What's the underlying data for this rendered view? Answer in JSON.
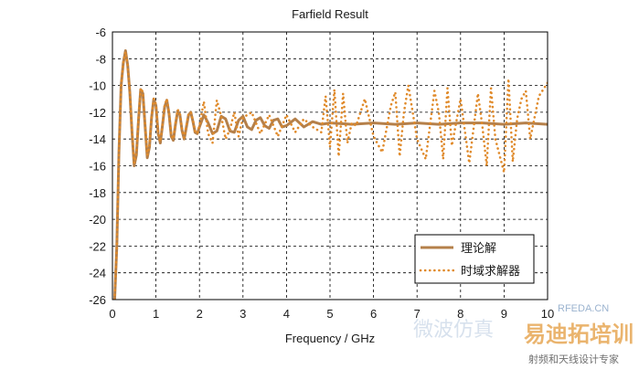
{
  "chart_data": {
    "type": "line",
    "title": "Farfield Result",
    "xlabel": "Frequency / GHz",
    "ylabel": "",
    "xlim": [
      0,
      10
    ],
    "ylim": [
      -26,
      -6
    ],
    "xticks": [
      0,
      1,
      2,
      3,
      4,
      5,
      6,
      7,
      8,
      9,
      10
    ],
    "yticks": [
      -6,
      -8,
      -10,
      -12,
      -14,
      -16,
      -18,
      -20,
      -22,
      -24,
      -26
    ],
    "grid": true,
    "legend_position": "bottom-right",
    "series": [
      {
        "name": "理论解",
        "style": "solid",
        "color": "#b5804a",
        "x": [
          0.05,
          0.1,
          0.15,
          0.2,
          0.25,
          0.3,
          0.35,
          0.4,
          0.45,
          0.5,
          0.55,
          0.6,
          0.65,
          0.7,
          0.75,
          0.8,
          0.85,
          0.9,
          0.95,
          1.0,
          1.05,
          1.1,
          1.15,
          1.2,
          1.25,
          1.3,
          1.35,
          1.4,
          1.45,
          1.5,
          1.55,
          1.6,
          1.65,
          1.7,
          1.75,
          1.8,
          1.85,
          1.9,
          1.95,
          2.0,
          2.1,
          2.2,
          2.3,
          2.4,
          2.5,
          2.6,
          2.7,
          2.8,
          2.9,
          3.0,
          3.1,
          3.2,
          3.3,
          3.4,
          3.5,
          3.6,
          3.7,
          3.8,
          3.9,
          4.0,
          4.2,
          4.4,
          4.6,
          4.8,
          5.0,
          5.5,
          6.0,
          6.5,
          7.0,
          7.5,
          8.0,
          8.5,
          9.0,
          9.5,
          10.0
        ],
        "y": [
          -26,
          -22,
          -15,
          -10,
          -8.3,
          -7.4,
          -8.5,
          -10.5,
          -13.5,
          -16.0,
          -15.2,
          -12.5,
          -10.3,
          -10.6,
          -13.0,
          -15.4,
          -14.6,
          -12.4,
          -11.0,
          -11.5,
          -13.6,
          -14.3,
          -13.0,
          -11.6,
          -11.1,
          -12.1,
          -13.8,
          -14.1,
          -12.9,
          -11.9,
          -12.2,
          -13.4,
          -14.0,
          -13.1,
          -12.2,
          -12.0,
          -12.7,
          -13.5,
          -13.6,
          -13.1,
          -12.2,
          -12.8,
          -13.6,
          -13.4,
          -12.3,
          -12.5,
          -13.4,
          -13.5,
          -12.6,
          -12.3,
          -13.1,
          -13.3,
          -12.6,
          -12.4,
          -13.0,
          -13.2,
          -12.6,
          -12.5,
          -13.1,
          -13.0,
          -12.5,
          -13.1,
          -12.7,
          -12.9,
          -12.8,
          -12.9,
          -12.8,
          -12.9,
          -12.8,
          -12.9,
          -12.8,
          -12.8,
          -12.9,
          -12.8,
          -12.9
        ]
      },
      {
        "name": "时域求解器",
        "style": "dotted",
        "color": "#e08a2a",
        "x": [
          0.05,
          0.1,
          0.15,
          0.2,
          0.25,
          0.3,
          0.35,
          0.4,
          0.45,
          0.5,
          0.55,
          0.6,
          0.65,
          0.7,
          0.75,
          0.8,
          0.85,
          0.9,
          0.95,
          1.0,
          1.05,
          1.1,
          1.15,
          1.2,
          1.25,
          1.3,
          1.35,
          1.4,
          1.45,
          1.5,
          1.55,
          1.6,
          1.65,
          1.7,
          1.75,
          1.8,
          1.85,
          1.9,
          1.95,
          2.0,
          2.1,
          2.2,
          2.3,
          2.4,
          2.5,
          2.6,
          2.7,
          2.8,
          2.9,
          3.0,
          3.2,
          3.4,
          3.6,
          3.8,
          4.0,
          4.2,
          4.4,
          4.6,
          4.8,
          4.9,
          5.0,
          5.1,
          5.2,
          5.3,
          5.4,
          5.5,
          5.6,
          5.8,
          6.0,
          6.2,
          6.4,
          6.5,
          6.6,
          6.7,
          6.8,
          7.0,
          7.2,
          7.4,
          7.5,
          7.6,
          7.7,
          7.8,
          8.0,
          8.2,
          8.4,
          8.5,
          8.6,
          8.7,
          8.8,
          9.0,
          9.1,
          9.2,
          9.3,
          9.4,
          9.5,
          9.6,
          9.8,
          10.0
        ],
        "y": [
          -26,
          -22,
          -15,
          -10,
          -8.3,
          -7.5,
          -8.5,
          -10.5,
          -13.3,
          -15.8,
          -15.0,
          -12.4,
          -10.2,
          -10.5,
          -12.9,
          -15.2,
          -14.5,
          -12.3,
          -11.0,
          -11.4,
          -13.5,
          -14.2,
          -13.0,
          -11.5,
          -11.0,
          -12.0,
          -13.7,
          -14.0,
          -12.8,
          -11.8,
          -12.1,
          -13.3,
          -13.9,
          -13.0,
          -12.1,
          -12.0,
          -12.6,
          -13.4,
          -13.6,
          -13.0,
          -11.2,
          -13.6,
          -14.3,
          -11.1,
          -12.3,
          -14.0,
          -13.3,
          -12.0,
          -13.8,
          -12.4,
          -12.0,
          -13.6,
          -12.2,
          -13.8,
          -12.2,
          -13.5,
          -12.5,
          -13.1,
          -13.5,
          -10.8,
          -14.6,
          -10.3,
          -15.3,
          -10.6,
          -14.3,
          -12.8,
          -13.0,
          -11.0,
          -13.8,
          -15.0,
          -11.5,
          -10.5,
          -15.3,
          -12.0,
          -10.0,
          -14.0,
          -15.5,
          -10.4,
          -12.0,
          -15.5,
          -10.2,
          -14.5,
          -11.0,
          -15.8,
          -10.6,
          -13.0,
          -16.0,
          -10.2,
          -14.0,
          -16.5,
          -9.5,
          -15.7,
          -12.5,
          -11.0,
          -10.4,
          -14.0,
          -10.8,
          -9.8
        ]
      }
    ]
  },
  "watermarks": {
    "site": "RFEDA.CN",
    "brand": "易迪拓培训",
    "subtitle": "射频和天线设计专家",
    "faint_left": "微波仿真"
  }
}
